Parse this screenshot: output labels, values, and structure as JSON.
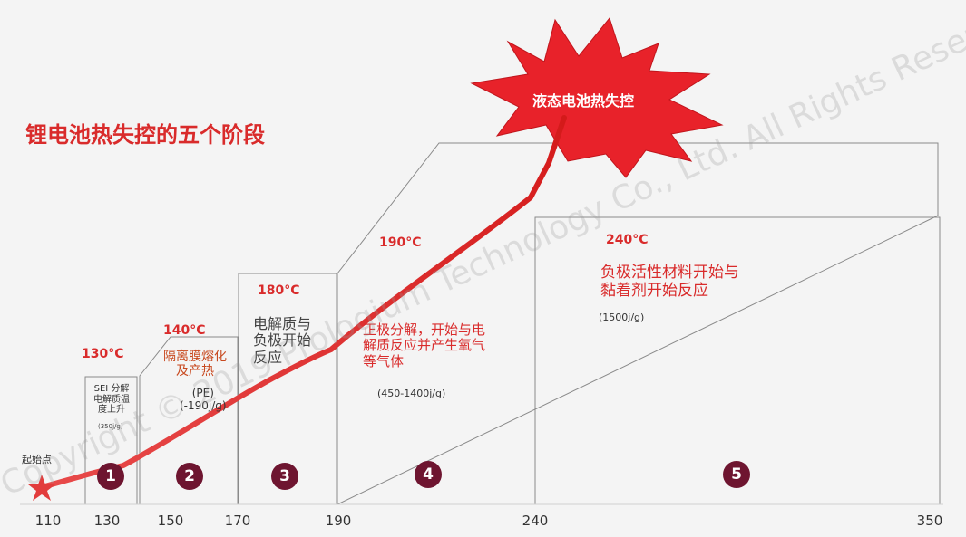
{
  "title": "锂电池热失控的五个阶段",
  "explosion_label": "液态电池热失控",
  "start_label": "起始点",
  "stages": [
    {
      "num": "1",
      "temp": "130°C",
      "desc": "SEI 分解\n电解质温\n度上升",
      "note": "(350j/g)"
    },
    {
      "num": "2",
      "temp": "140°C",
      "desc": "隔离膜熔化\n及产热",
      "note": "(PE)\n(-190j/g)"
    },
    {
      "num": "3",
      "temp": "180°C",
      "desc": "电解质与\n负极开始\n反应",
      "note": ""
    },
    {
      "num": "4",
      "temp": "190°C",
      "desc": "正极分解，开始与电\n解质反应并产生氧气\n等气体",
      "note": "(450-1400j/g)"
    },
    {
      "num": "5",
      "temp": "240°C",
      "desc": "负极活性材料开始与\n黏着剂开始反应",
      "note": "(1500j/g)"
    }
  ],
  "axis_ticks": [
    "110",
    "130",
    "150",
    "170",
    "190",
    "240",
    "350"
  ],
  "watermark": "Copyright © 2019 Prologium Technology Co., Ltd. All Rights Reserved",
  "colors": {
    "accent": "#d92b2b",
    "circle": "#6e1530",
    "box": "#8a8a8a",
    "curve": "#e03030"
  },
  "chart_data": {
    "type": "line",
    "x_ticks": [
      110,
      130,
      150,
      170,
      190,
      240,
      350
    ]
  }
}
